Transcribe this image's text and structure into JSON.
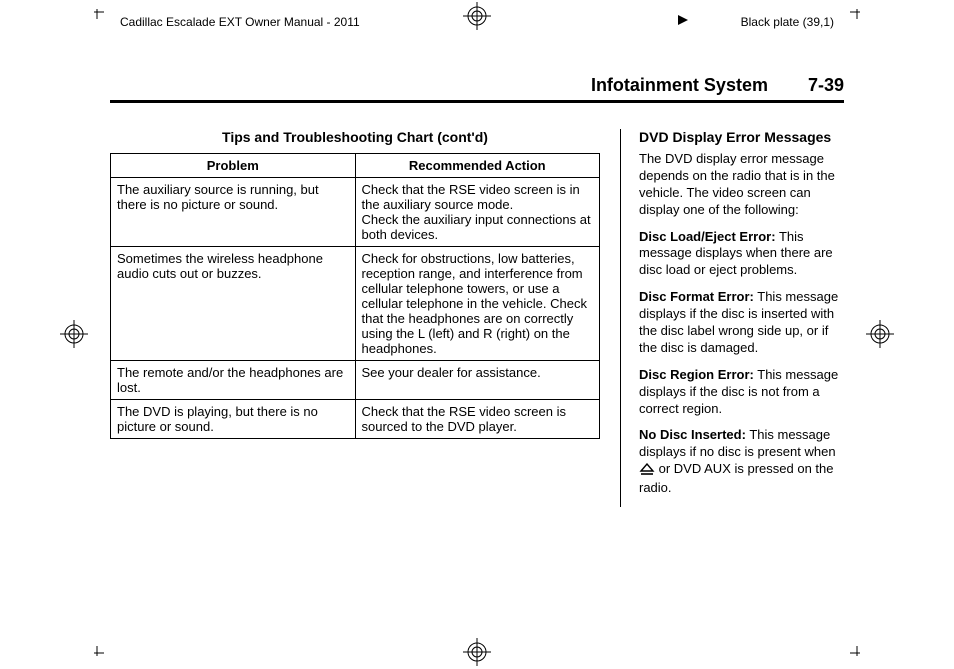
{
  "header": {
    "left": "Cadillac Escalade EXT Owner Manual - 2011",
    "right": "Black plate (39,1)"
  },
  "section": {
    "title": "Infotainment System",
    "page": "7-39"
  },
  "chart": {
    "title": "Tips and Troubleshooting Chart (cont'd)",
    "columns": [
      "Problem",
      "Recommended Action"
    ],
    "rows": [
      {
        "problem": "The auxiliary source is running, but there is no picture or sound.",
        "action": "Check that the RSE video screen is in the auxiliary source mode.\nCheck the auxiliary input connections at both devices."
      },
      {
        "problem": "Sometimes the wireless headphone audio cuts out or buzzes.",
        "action": "Check for obstructions, low batteries, reception range, and interference from cellular telephone towers, or use a cellular telephone in the vehicle. Check that the headphones are on correctly using the L (left) and R (right) on the headphones."
      },
      {
        "problem": "The remote and/or the headphones are lost.",
        "action": "See your dealer for assistance."
      },
      {
        "problem": "The DVD is playing, but there is no picture or sound.",
        "action": "Check that the RSE video screen is sourced to the DVD player."
      }
    ]
  },
  "side": {
    "heading": "DVD Display Error Messages",
    "intro": "The DVD display error message depends on the radio that is in the vehicle. The video screen can display one of the following:",
    "items": [
      {
        "label": "Disc Load/Eject Error:",
        "text": "This message displays when there are disc load or eject problems."
      },
      {
        "label": "Disc Format Error:",
        "text": "This message displays if the disc is inserted with the disc label wrong side up, or if the disc is damaged."
      },
      {
        "label": "Disc Region Error:",
        "text": "This message displays if the disc is not from a correct region."
      }
    ],
    "no_disc": {
      "label": "No Disc Inserted:",
      "text_before": "This message displays if no disc is present when ",
      "text_after": " or DVD AUX is pressed on the radio."
    }
  }
}
